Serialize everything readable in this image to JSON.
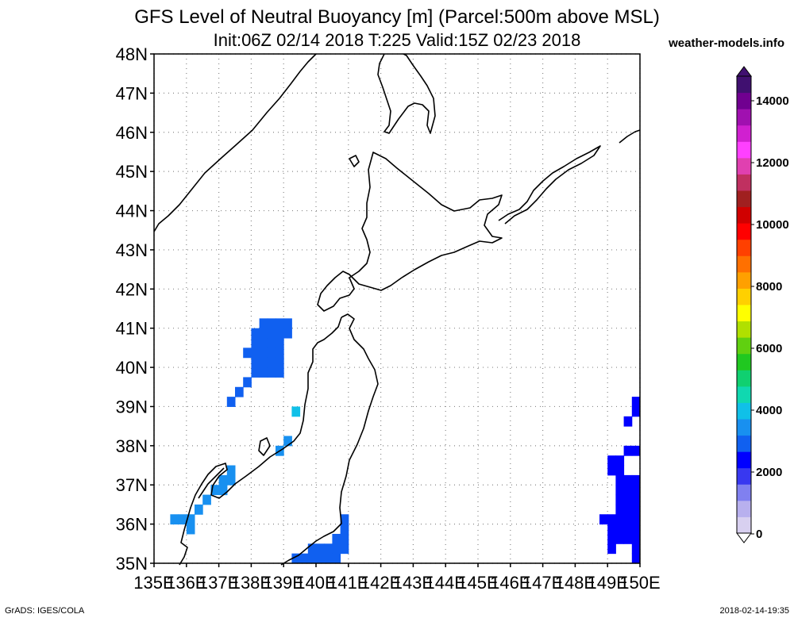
{
  "title": {
    "line1": "GFS Level of Neutral Buoyancy [m] (Parcel:500m above MSL)",
    "line2": "Init:06Z 02/14 2018 T:225 Valid:15Z 02/23 2018"
  },
  "site": "weather-models.info",
  "footer": {
    "left": "GrADS: IGES/COLA",
    "right": "2018-02-14-19:35"
  },
  "map": {
    "lat_labels": [
      "48N",
      "47N",
      "46N",
      "45N",
      "44N",
      "43N",
      "42N",
      "41N",
      "40N",
      "39N",
      "38N",
      "37N",
      "36N",
      "35N"
    ],
    "lon_labels": [
      "135E",
      "136E",
      "137E",
      "138E",
      "139E",
      "140E",
      "141E",
      "142E",
      "143E",
      "144E",
      "145E",
      "146E",
      "147E",
      "148E",
      "149E",
      "150E"
    ],
    "lat_range": [
      35,
      48
    ],
    "lon_range": [
      135,
      150
    ]
  },
  "colorbar": {
    "labels": [
      "14000",
      "12000",
      "10000",
      "8000",
      "6000",
      "4000",
      "2000",
      "0"
    ],
    "colors": [
      "#d8d0f0",
      "#b8b0ee",
      "#8080f0",
      "#3838f0",
      "#0000ff",
      "#1060f0",
      "#1890f0",
      "#10c0e8",
      "#10d8b0",
      "#10d070",
      "#20c820",
      "#60d010",
      "#b0e000",
      "#ffff00",
      "#ffd000",
      "#ffa000",
      "#ff7000",
      "#ff4000",
      "#ff0000",
      "#d00000",
      "#a02020",
      "#c03060",
      "#e040b0",
      "#ff40ff",
      "#d020d0",
      "#a010b0",
      "#700090",
      "#401070"
    ]
  }
}
